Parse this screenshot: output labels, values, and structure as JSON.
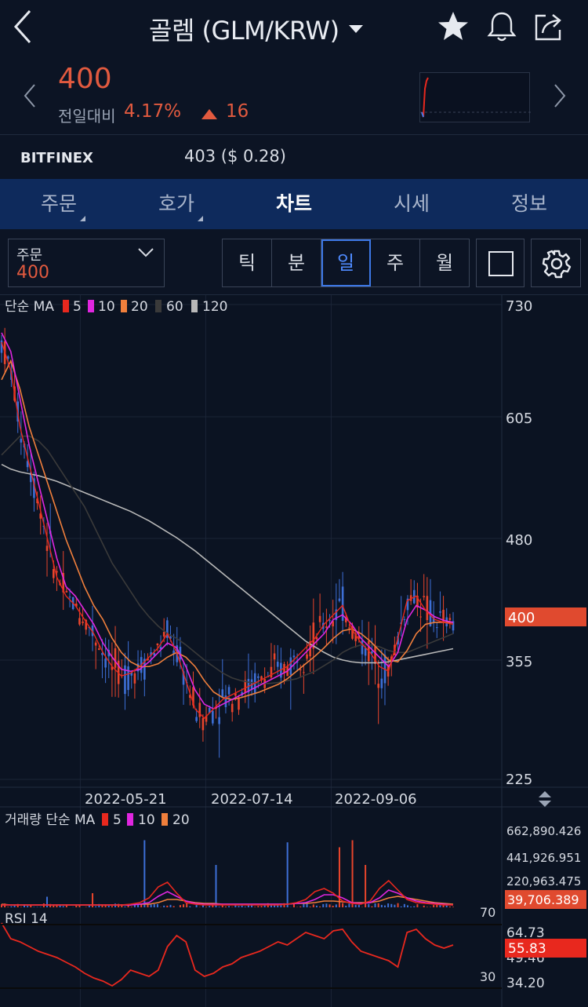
{
  "header": {
    "title": "골렘 (GLM/KRW)",
    "icons": [
      "back-arrow-icon",
      "star-icon",
      "bell-icon",
      "share-icon"
    ]
  },
  "price": {
    "current": "400",
    "change_label": "전일대비",
    "change_pct": "4.17%",
    "change_val": "16"
  },
  "exchange": {
    "name": "BITFINEX",
    "price": "403 ($ 0.28)"
  },
  "tabs": [
    {
      "label": "주문",
      "has_sub": true
    },
    {
      "label": "호가",
      "has_sub": true
    },
    {
      "label": "차트",
      "active": true
    },
    {
      "label": "시세"
    },
    {
      "label": "정보"
    }
  ],
  "controls": {
    "order_label": "주문",
    "order_value": "400",
    "periods": [
      "틱",
      "분",
      "일",
      "주",
      "월"
    ],
    "active_period": "일"
  },
  "chart_data": {
    "type": "line",
    "ma_legend": {
      "label": "단순 MA",
      "items": [
        {
          "value": "5",
          "color": "#e8281e"
        },
        {
          "value": "10",
          "color": "#e026e0"
        },
        {
          "value": "20",
          "color": "#f07f3c"
        },
        {
          "value": "60",
          "color": "#3a3a3a"
        },
        {
          "value": "120",
          "color": "#b8b8b8"
        }
      ]
    },
    "y_ticks": [
      "730",
      "605",
      "480",
      "355",
      "225"
    ],
    "ylim": [
      225,
      730
    ],
    "current_price_tag": "400",
    "x_ticks": [
      "2022-05-21",
      "2022-07-14",
      "2022-09-06"
    ],
    "volume": {
      "legend_label": "거래량 단순 MA",
      "items": [
        {
          "value": "5",
          "color": "#e8281e"
        },
        {
          "value": "10",
          "color": "#e026e0"
        },
        {
          "value": "20",
          "color": "#f07f3c"
        }
      ],
      "y_ticks": [
        "662,890.426",
        "441,926.951",
        "220,963.475"
      ],
      "current_tag": "39,706.389"
    },
    "rsi": {
      "label": "RSI 14",
      "lines": [
        "70",
        "30"
      ],
      "y_ticks": [
        "64.73",
        "49.46",
        "34.20"
      ],
      "current_tag": "55.83"
    },
    "ma5": [
      690,
      660,
      600,
      560,
      520,
      480,
      440,
      420,
      410,
      395,
      380,
      360,
      345,
      335,
      338,
      345,
      355,
      365,
      380,
      360,
      330,
      300,
      290,
      300,
      310,
      315,
      320,
      325,
      330,
      335,
      340,
      345,
      355,
      365,
      375,
      390,
      400,
      410,
      385,
      370,
      360,
      345,
      340,
      375,
      415,
      420,
      405,
      395,
      392,
      390
    ],
    "ma10": [
      700,
      680,
      630,
      580,
      540,
      500,
      460,
      430,
      420,
      405,
      390,
      370,
      355,
      342,
      340,
      342,
      350,
      360,
      370,
      365,
      345,
      320,
      305,
      300,
      305,
      310,
      315,
      320,
      325,
      330,
      335,
      340,
      350,
      360,
      370,
      380,
      395,
      400,
      390,
      375,
      365,
      355,
      345,
      360,
      395,
      410,
      405,
      398,
      394,
      392
    ],
    "ma20": [
      650,
      670,
      640,
      600,
      570,
      540,
      510,
      480,
      455,
      430,
      410,
      395,
      375,
      360,
      350,
      345,
      345,
      348,
      355,
      360,
      355,
      345,
      330,
      318,
      312,
      310,
      312,
      315,
      318,
      322,
      326,
      332,
      340,
      348,
      356,
      365,
      375,
      383,
      385,
      380,
      372,
      362,
      352,
      350,
      362,
      380,
      390,
      392,
      392,
      392
    ],
    "ma60": [
      570,
      580,
      590,
      590,
      585,
      575,
      560,
      545,
      530,
      515,
      495,
      475,
      455,
      440,
      425,
      410,
      398,
      388,
      380,
      375,
      368,
      360,
      352,
      345,
      338,
      333,
      330,
      328,
      327,
      327,
      328,
      330,
      332,
      336,
      340,
      346,
      352,
      360,
      365,
      368,
      368,
      366,
      362,
      360,
      360,
      364,
      368,
      372,
      376,
      380
    ],
    "ma120": [
      560,
      555,
      552,
      550,
      548,
      545,
      542,
      538,
      534,
      530,
      526,
      522,
      518,
      514,
      510,
      505,
      500,
      494,
      488,
      482,
      475,
      468,
      460,
      452,
      444,
      436,
      428,
      420,
      412,
      404,
      396,
      388,
      380,
      372,
      366,
      360,
      355,
      352,
      350,
      349,
      349,
      349,
      350,
      352,
      354,
      356,
      358,
      360,
      362,
      364
    ],
    "rsi_values": [
      70,
      60,
      58,
      55,
      52,
      50,
      48,
      45,
      42,
      38,
      35,
      33,
      30,
      34,
      40,
      38,
      36,
      40,
      55,
      62,
      58,
      40,
      36,
      38,
      42,
      44,
      48,
      50,
      52,
      55,
      58,
      56,
      60,
      64,
      62,
      60,
      65,
      66,
      58,
      52,
      50,
      48,
      46,
      42,
      64,
      66,
      60,
      56,
      54,
      56
    ]
  }
}
